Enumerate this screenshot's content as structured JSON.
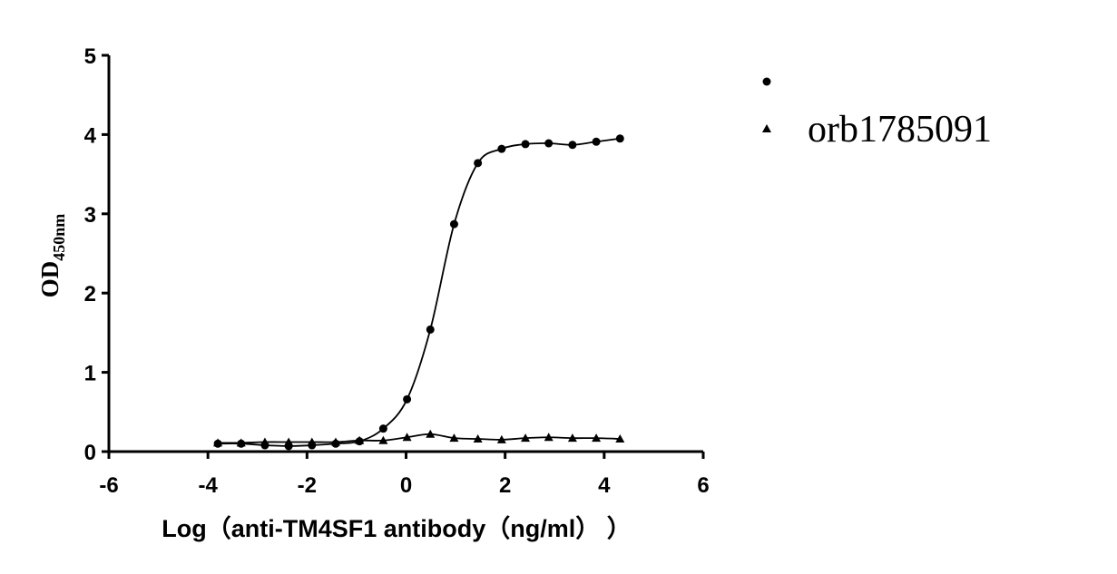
{
  "chart_data": {
    "type": "scatter",
    "xlabel": "Log（anti-TM4SF1 antibody（ng/ml）  ）",
    "ylabel": "OD",
    "ylabel_subscript": "450nm",
    "xlim": [
      -6,
      6
    ],
    "xticks": [
      -6,
      -4,
      -2,
      0,
      2,
      4,
      6
    ],
    "ylim": [
      0,
      5
    ],
    "yticks": [
      0,
      1,
      2,
      3,
      4,
      5
    ],
    "x": [
      -3.8,
      -3.33,
      -2.85,
      -2.37,
      -1.9,
      -1.42,
      -0.94,
      -0.46,
      0.02,
      0.49,
      0.97,
      1.45,
      1.93,
      2.41,
      2.88,
      3.36,
      3.84,
      4.32
    ],
    "series": [
      {
        "name": null,
        "color": "#000000",
        "marker": "circle",
        "values": [
          0.1,
          0.1,
          0.08,
          0.07,
          0.08,
          0.1,
          0.13,
          0.29,
          0.66,
          1.54,
          2.87,
          3.64,
          3.82,
          3.88,
          3.89,
          3.87,
          3.91,
          3.95
        ]
      },
      {
        "name": "orb1785091",
        "color": "#000000",
        "marker": "triangle",
        "values": [
          0.11,
          0.11,
          0.12,
          0.12,
          0.12,
          0.12,
          0.14,
          0.14,
          0.18,
          0.22,
          0.17,
          0.16,
          0.15,
          0.17,
          0.18,
          0.17,
          0.17,
          0.16
        ]
      }
    ]
  }
}
